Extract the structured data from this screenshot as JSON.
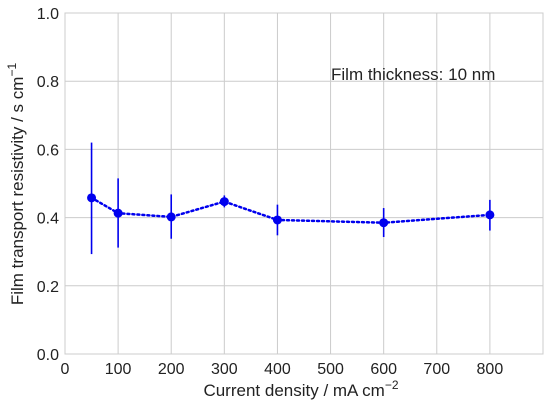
{
  "chart_data": {
    "type": "scatter",
    "title": "",
    "xlabel": "Current density / mA cm",
    "xlabel_sup": "−2",
    "ylabel": "Film transport resistivity / s cm",
    "ylabel_sup": "−1",
    "annotation": "Film thickness: 10 nm",
    "xlim": [
      0,
      900
    ],
    "ylim": [
      0.0,
      1.0
    ],
    "xticks": [
      0,
      100,
      200,
      300,
      400,
      500,
      600,
      700,
      800
    ],
    "yticks": [
      0.0,
      0.2,
      0.4,
      0.6,
      0.8,
      1.0
    ],
    "xtick_labels": [
      "0",
      "100",
      "200",
      "300",
      "400",
      "500",
      "600",
      "700",
      "800"
    ],
    "ytick_labels": [
      "0.0",
      "0.2",
      "0.4",
      "0.6",
      "0.8",
      "1.0"
    ],
    "grid": true,
    "line_style": "dotted",
    "color": "#0000ee",
    "series": [
      {
        "x": [
          50,
          100,
          200,
          300,
          400,
          600,
          800
        ],
        "y": [
          0.458,
          0.413,
          0.402,
          0.447,
          0.393,
          0.385,
          0.408
        ],
        "yerr_low": [
          0.293,
          0.312,
          0.338,
          0.43,
          0.348,
          0.343,
          0.362
        ],
        "yerr_high": [
          0.62,
          0.515,
          0.468,
          0.465,
          0.438,
          0.428,
          0.452
        ]
      }
    ]
  }
}
